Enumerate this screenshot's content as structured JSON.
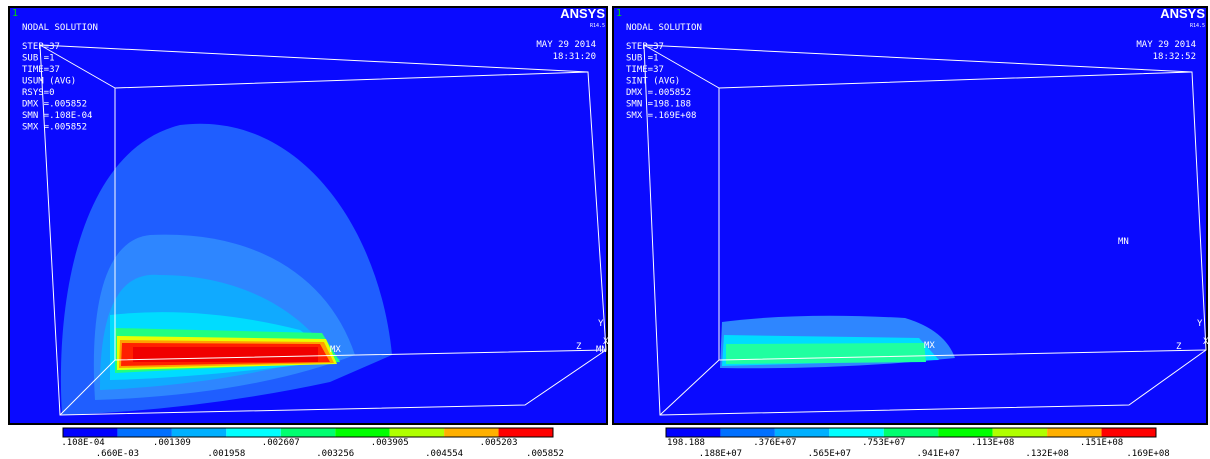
{
  "panels": [
    {
      "window_number": "1",
      "logo": "ANSYS",
      "version": "R14.5",
      "title": "NODAL SOLUTION",
      "info": [
        "STEP=37",
        "SUB =1",
        "TIME=37",
        "USUM     (AVG)",
        "RSYS=0",
        "DMX =.005852",
        "SMN =.108E-04",
        "SMX =.005852"
      ],
      "date": "MAY 29 2014",
      "time": "18:31:20",
      "min_label": "MN",
      "max_label": "MX",
      "axis_labels": {
        "y": "Y",
        "z": "Z",
        "x": "X"
      },
      "legend": {
        "upper": [
          ".108E-04",
          ".001309",
          ".002607",
          ".003905",
          ".005203"
        ],
        "lower": [
          ".660E-03",
          ".001958",
          ".003256",
          ".004554",
          ".005852"
        ]
      }
    },
    {
      "window_number": "1",
      "logo": "ANSYS",
      "version": "R14.5",
      "title": "NODAL SOLUTION",
      "info": [
        "STEP=37",
        "SUB =1",
        "TIME=37",
        "SINT     (AVG)",
        "DMX =.005852",
        "SMN =198.188",
        "SMX =.169E+08"
      ],
      "date": "MAY 29 2014",
      "time": "18:32:52",
      "min_label": "MN",
      "max_label": "MX",
      "axis_labels": {
        "y": "Y",
        "z": "Z",
        "x": "X"
      },
      "legend": {
        "upper": [
          "198.188",
          ".376E+07",
          ".753E+07",
          ".113E+08",
          ".151E+08"
        ],
        "lower": [
          ".188E+07",
          ".565E+07",
          ".941E+07",
          ".132E+08",
          ".169E+08"
        ]
      }
    }
  ]
}
